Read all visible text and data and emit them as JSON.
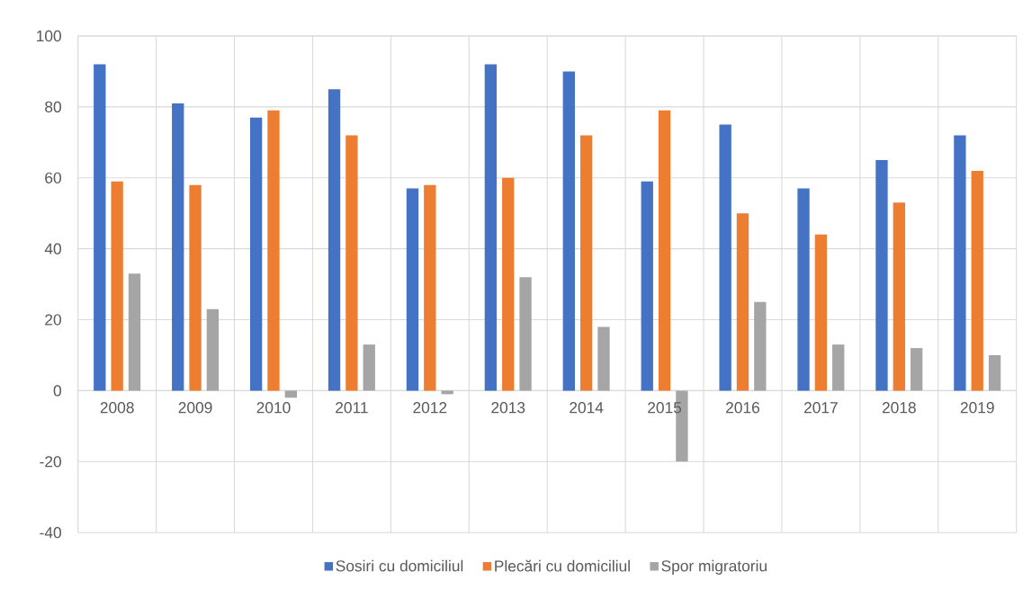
{
  "chart_data": {
    "type": "bar",
    "categories": [
      "2008",
      "2009",
      "2010",
      "2011",
      "2012",
      "2013",
      "2014",
      "2015",
      "2016",
      "2017",
      "2018",
      "2019"
    ],
    "series": [
      {
        "name": "Sosiri cu domiciliul",
        "color": "#4472c4",
        "values": [
          92,
          81,
          77,
          85,
          57,
          92,
          90,
          59,
          75,
          57,
          65,
          72
        ]
      },
      {
        "name": "Plecări cu domiciliul",
        "color": "#ed7d31",
        "values": [
          59,
          58,
          79,
          72,
          58,
          60,
          72,
          79,
          50,
          44,
          53,
          62
        ]
      },
      {
        "name": "Spor migratoriu",
        "color": "#a5a5a5",
        "values": [
          33,
          23,
          -2,
          13,
          -1,
          32,
          18,
          -20,
          25,
          13,
          12,
          10
        ]
      }
    ],
    "ylim": [
      -40,
      100
    ],
    "yticks": [
      -40,
      -20,
      0,
      20,
      40,
      60,
      80,
      100
    ],
    "grid": true,
    "legend": "bottom"
  }
}
